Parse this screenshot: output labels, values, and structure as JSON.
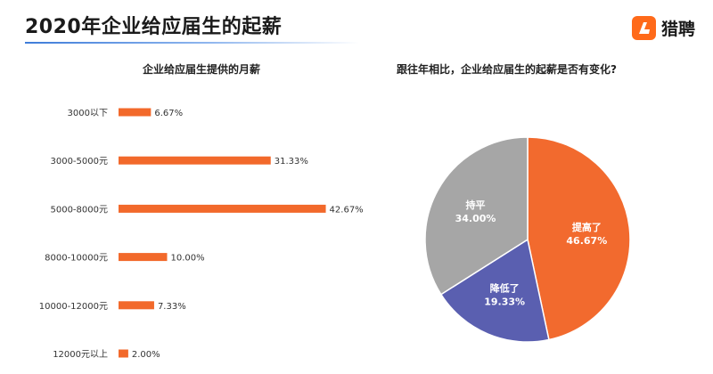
{
  "header": {
    "title": "2020年企业给应届生的起薪",
    "brand_name": "猎聘",
    "brand_color": "#ff6a1a"
  },
  "chart_data": [
    {
      "type": "bar",
      "orientation": "horizontal",
      "title": "企业给应届生提供的月薪",
      "categories": [
        "3000以下",
        "3000-5000元",
        "5000-8000元",
        "8000-10000元",
        "10000-12000元",
        "12000元以上"
      ],
      "values": [
        6.67,
        31.33,
        42.67,
        10.0,
        7.33,
        2.0
      ],
      "value_labels": [
        "6.67%",
        "31.33%",
        "42.67%",
        "10.00%",
        "7.33%",
        "2.00%"
      ],
      "unit": "%",
      "color": "#f2692b",
      "grid": false,
      "legend": "none"
    },
    {
      "type": "pie",
      "title": "跟往年相比，企业给应届生的起薪是否有变化?",
      "slices": [
        {
          "label": "提高了",
          "value": 46.67,
          "value_label": "46.67%",
          "color": "#f26a2e"
        },
        {
          "label": "降低了",
          "value": 19.33,
          "value_label": "19.33%",
          "color": "#5a5fb0"
        },
        {
          "label": "持平",
          "value": 34.0,
          "value_label": "34.00%",
          "color": "#a6a6a6"
        }
      ],
      "start": "12 o'clock",
      "direction": "clockwise",
      "legend": "none"
    }
  ]
}
